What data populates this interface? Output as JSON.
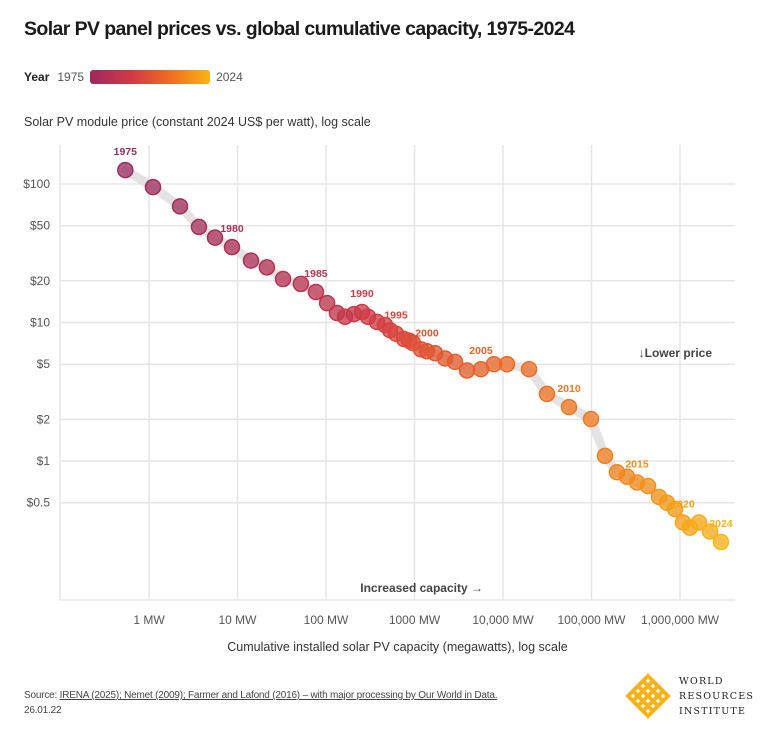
{
  "title": "Solar PV panel prices vs. global cumulative capacity, 1975-2024",
  "legend": {
    "label": "Year",
    "start": "1975",
    "end": "2024",
    "colors": [
      "#9b2a5e",
      "#d13a45",
      "#ee6a22",
      "#fbb414"
    ]
  },
  "source": {
    "prefix": "Source: ",
    "refs": "IRENA (2025); Nemet (2009); Farmer and Lafond (2016) – with major processing by Our World in Data.",
    "date": "26.01.22"
  },
  "logo": {
    "lines": [
      "WORLD",
      "RESOURCES",
      "INSTITUTE"
    ],
    "color": "#f5b31b"
  },
  "chart_data": {
    "type": "scatter",
    "title": "Solar PV panel prices vs. global cumulative capacity, 1975-2024",
    "xlabel": "Cumulative installed solar PV capacity (megawatts), log scale",
    "ylabel": "Solar PV module price (constant 2024 US$ per watt), log scale",
    "x_scale": "log",
    "y_scale": "log",
    "xlim": [
      0.3,
      3500000
    ],
    "ylim": [
      0.2,
      160
    ],
    "grid": true,
    "x_ticks": [
      {
        "value": 1,
        "label": "1 MW"
      },
      {
        "value": 10,
        "label": "10 MW"
      },
      {
        "value": 100,
        "label": "100 MW"
      },
      {
        "value": 1000,
        "label": "1000 MW"
      },
      {
        "value": 10000,
        "label": "10,000 MW"
      },
      {
        "value": 100000,
        "label": "100,000 MW"
      },
      {
        "value": 1000000,
        "label": "1,000,000 MW"
      }
    ],
    "y_ticks": [
      {
        "value": 100,
        "label": "$100"
      },
      {
        "value": 50,
        "label": "$50"
      },
      {
        "value": 20,
        "label": "$20"
      },
      {
        "value": 10,
        "label": "$10"
      },
      {
        "value": 5,
        "label": "$5"
      },
      {
        "value": 2,
        "label": "$2"
      },
      {
        "value": 1,
        "label": "$1"
      },
      {
        "value": 0.5,
        "label": "$0.5"
      }
    ],
    "annotations": {
      "price": "↓Lower price",
      "capacity": "Increased capacity →"
    },
    "labeled_years": [
      "1975",
      "1980",
      "1985",
      "1990",
      "1995",
      "2000",
      "2005",
      "2010",
      "2015",
      "2020",
      "2024"
    ],
    "points": [
      {
        "year": 1975,
        "x": 0.54,
        "y": 126
      },
      {
        "year": 1976,
        "x": 1.11,
        "y": 95
      },
      {
        "year": 1977,
        "x": 2.24,
        "y": 69
      },
      {
        "year": 1978,
        "x": 3.67,
        "y": 49
      },
      {
        "year": 1979,
        "x": 5.57,
        "y": 41
      },
      {
        "year": 1980,
        "x": 8.67,
        "y": 35
      },
      {
        "year": 1981,
        "x": 14.2,
        "y": 28
      },
      {
        "year": 1982,
        "x": 21.5,
        "y": 25
      },
      {
        "year": 1983,
        "x": 32.7,
        "y": 20.6
      },
      {
        "year": 1984,
        "x": 52,
        "y": 19
      },
      {
        "year": 1985,
        "x": 77,
        "y": 16.6
      },
      {
        "year": 1986,
        "x": 103,
        "y": 13.8
      },
      {
        "year": 1987,
        "x": 133,
        "y": 11.7
      },
      {
        "year": 1988,
        "x": 164,
        "y": 11.0
      },
      {
        "year": 1989,
        "x": 207,
        "y": 11.5
      },
      {
        "year": 1990,
        "x": 255,
        "y": 11.9
      },
      {
        "year": 1991,
        "x": 298,
        "y": 11.0
      },
      {
        "year": 1992,
        "x": 377,
        "y": 10.1
      },
      {
        "year": 1993,
        "x": 464,
        "y": 9.6
      },
      {
        "year": 1994,
        "x": 529,
        "y": 8.8
      },
      {
        "year": 1995,
        "x": 618,
        "y": 8.3
      },
      {
        "year": 1996,
        "x": 761,
        "y": 7.6
      },
      {
        "year": 1997,
        "x": 867,
        "y": 7.4
      },
      {
        "year": 1998,
        "x": 962,
        "y": 7.1
      },
      {
        "year": 1999,
        "x": 1184,
        "y": 6.4
      },
      {
        "year": 2000,
        "x": 1384,
        "y": 6.2
      },
      {
        "year": 2001,
        "x": 1706,
        "y": 6.0
      },
      {
        "year": 2002,
        "x": 2213,
        "y": 5.5
      },
      {
        "year": 2003,
        "x": 2870,
        "y": 5.2
      },
      {
        "year": 2004,
        "x": 3920,
        "y": 4.5
      },
      {
        "year": 2005,
        "x": 5640,
        "y": 4.6
      },
      {
        "year": 2006,
        "x": 7900,
        "y": 5.0
      },
      {
        "year": 2007,
        "x": 11100,
        "y": 5.0
      },
      {
        "year": 2008,
        "x": 19700,
        "y": 4.6
      },
      {
        "year": 2009,
        "x": 31400,
        "y": 3.05
      },
      {
        "year": 2010,
        "x": 55700,
        "y": 2.45
      },
      {
        "year": 2011,
        "x": 98700,
        "y": 2.01
      },
      {
        "year": 2012,
        "x": 142000,
        "y": 1.09
      },
      {
        "year": 2013,
        "x": 194000,
        "y": 0.83
      },
      {
        "year": 2014,
        "x": 252000,
        "y": 0.77
      },
      {
        "year": 2015,
        "x": 327000,
        "y": 0.7
      },
      {
        "year": 2016,
        "x": 435000,
        "y": 0.66
      },
      {
        "year": 2017,
        "x": 579000,
        "y": 0.55
      },
      {
        "year": 2018,
        "x": 713000,
        "y": 0.5
      },
      {
        "year": 2019,
        "x": 879000,
        "y": 0.45
      },
      {
        "year": 2020,
        "x": 1081000,
        "y": 0.36
      },
      {
        "year": 2021,
        "x": 1297000,
        "y": 0.33
      },
      {
        "year": 2022,
        "x": 1640000,
        "y": 0.36
      },
      {
        "year": 2023,
        "x": 2183000,
        "y": 0.31
      },
      {
        "year": 2024,
        "x": 2904000,
        "y": 0.26
      }
    ]
  }
}
